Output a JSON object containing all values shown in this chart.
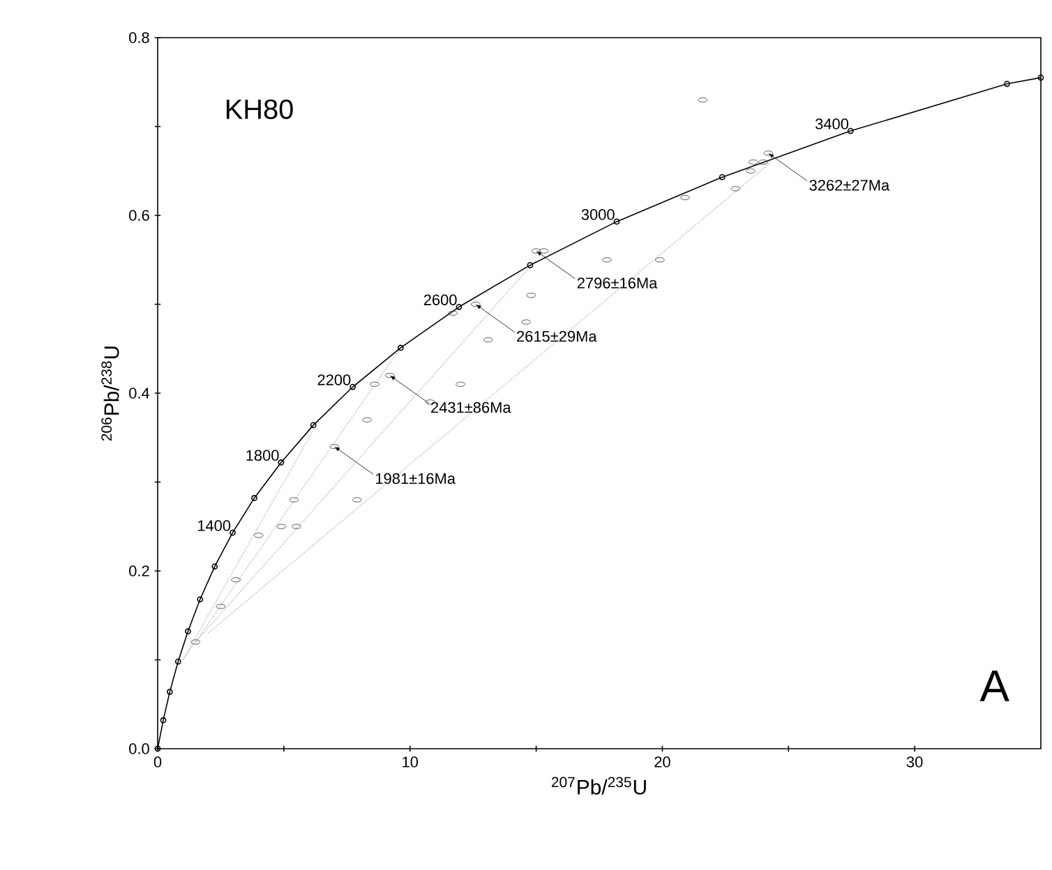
{
  "chart_data": {
    "type": "line",
    "xlabel": "$^{207}$Pb/$^{235}$U",
    "ylabel": "$^{206}$Pb/$^{238}$U",
    "xlim": [
      0,
      35
    ],
    "ylim": [
      0,
      0.8
    ],
    "xticks": [
      0,
      {
        "value": 5,
        "label": null
      },
      10,
      {
        "value": 15,
        "label": null
      },
      20,
      {
        "value": 25,
        "label": null
      },
      30
    ],
    "yticks": [
      {
        "value": 0,
        "label": "0.0"
      },
      {
        "value": 0.1,
        "label": null
      },
      {
        "value": 0.2,
        "label": "0.2"
      },
      {
        "value": 0.3,
        "label": null
      },
      {
        "value": 0.4,
        "label": "0.4"
      },
      {
        "value": 0.5,
        "label": null
      },
      {
        "value": 0.6,
        "label": "0.6"
      },
      {
        "value": 0.7,
        "label": null
      },
      {
        "value": 0.8,
        "label": "0.8"
      }
    ],
    "series": [
      {
        "type": "line",
        "color": "#bbbbbb",
        "line_style": "dotted",
        "marker": "none",
        "x": [
          1.0,
          6.2
        ],
        "values": [
          0.1,
          0.36
        ]
      },
      {
        "type": "line",
        "color": "#bbbbbb",
        "line_style": "dotted",
        "marker": "none",
        "x": [
          1.0,
          9.6
        ],
        "values": [
          0.1,
          0.45
        ]
      },
      {
        "type": "line",
        "color": "#bbbbbb",
        "line_style": "dotted",
        "marker": "none",
        "x": [
          1.5,
          15.0
        ],
        "values": [
          0.12,
          0.55
        ]
      },
      {
        "type": "line",
        "color": "#bbbbbb",
        "line_style": "dotted",
        "marker": "none",
        "x": [
          2.0,
          24.3
        ],
        "values": [
          0.13,
          0.66
        ]
      },
      {
        "type": "scatter",
        "color": "#333333",
        "marker": "circle",
        "x": [
          21.6,
          20.9,
          22.9,
          23.6,
          24.2,
          17.8,
          19.9,
          14.8,
          14.6,
          13.1,
          12.0,
          10.8,
          8.3,
          11.7,
          12.6,
          9.2,
          8.6,
          7.0,
          5.4,
          4.9,
          5.5,
          7.9,
          4.0,
          3.1,
          2.5,
          1.5,
          15.0,
          15.3,
          24.0,
          23.5
        ],
        "values": [
          0.73,
          0.62,
          0.63,
          0.66,
          0.67,
          0.55,
          0.55,
          0.51,
          0.48,
          0.46,
          0.41,
          0.39,
          0.37,
          0.49,
          0.5,
          0.42,
          0.41,
          0.34,
          0.28,
          0.25,
          0.25,
          0.28,
          0.24,
          0.19,
          0.16,
          0.12,
          0.56,
          0.56,
          0.66,
          0.65
        ]
      },
      {
        "color": "#000000",
        "line_style": "solid",
        "marker": "circle",
        "x": [
          0,
          0.22,
          0.48,
          0.81,
          1.2,
          1.68,
          2.26,
          2.97,
          3.83,
          4.89,
          6.17,
          7.73,
          9.63,
          11.94,
          14.76,
          18.19,
          22.37,
          27.46,
          33.66,
          35
        ],
        "values": [
          0,
          0.032,
          0.064,
          0.098,
          0.132,
          0.168,
          0.205,
          0.243,
          0.282,
          0.322,
          0.364,
          0.407,
          0.451,
          0.497,
          0.544,
          0.593,
          0.643,
          0.695,
          0.748,
          0.755
        ]
      }
    ],
    "annotations": [
      "KH80",
      "A",
      {
        "text": "1400",
        "x": 2.97,
        "y": 0.243
      },
      {
        "text": "1800",
        "x": 4.89,
        "y": 0.322
      },
      {
        "text": "2200",
        "x": 7.73,
        "y": 0.407
      },
      {
        "text": "2600",
        "x": 11.94,
        "y": 0.497
      },
      {
        "text": "3000",
        "x": 18.19,
        "y": 0.593
      },
      {
        "text": "3400",
        "x": 27.46,
        "y": 0.695
      },
      {
        "text": "1981±16Ma",
        "x": 7.0,
        "y": 0.34
      },
      {
        "text": "2431±86Ma",
        "x": 9.2,
        "y": 0.42
      },
      {
        "text": "2615±29Ma",
        "x": 12.6,
        "y": 0.5
      },
      {
        "text": "2796±16Ma",
        "x": 15.0,
        "y": 0.56
      },
      {
        "text": "3262±27Ma",
        "x": 24.2,
        "y": 0.67
      }
    ]
  }
}
